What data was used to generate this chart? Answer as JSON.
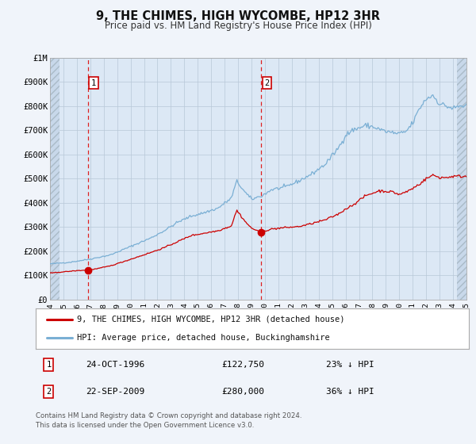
{
  "title": "9, THE CHIMES, HIGH WYCOMBE, HP12 3HR",
  "subtitle": "Price paid vs. HM Land Registry's House Price Index (HPI)",
  "bg_color": "#f0f4fa",
  "plot_bg_color": "#dce8f5",
  "hatch_color": "#c8d8ea",
  "grid_color": "#b8c8d8",
  "red_line_color": "#cc0000",
  "blue_line_color": "#7aafd4",
  "vline_color": "#dd2222",
  "marker_color": "#cc0000",
  "ylim_min": 0,
  "ylim_max": 1000000,
  "yticks": [
    0,
    100000,
    200000,
    300000,
    400000,
    500000,
    600000,
    700000,
    800000,
    900000,
    1000000
  ],
  "ytick_labels": [
    "£0",
    "£100K",
    "£200K",
    "£300K",
    "£400K",
    "£500K",
    "£600K",
    "£700K",
    "£800K",
    "£900K",
    "£1M"
  ],
  "xmin_year": 1994,
  "xmax_year": 2025,
  "xticks": [
    1994,
    1995,
    1996,
    1997,
    1998,
    1999,
    2000,
    2001,
    2002,
    2003,
    2004,
    2005,
    2006,
    2007,
    2008,
    2009,
    2010,
    2011,
    2012,
    2013,
    2014,
    2015,
    2016,
    2017,
    2018,
    2019,
    2020,
    2021,
    2022,
    2023,
    2024,
    2025
  ],
  "sale1_year": 1996.81,
  "sale1_price": 122750,
  "sale1_label": "1",
  "sale1_date": "24-OCT-1996",
  "sale1_price_str": "£122,750",
  "sale1_pct": "23% ↓ HPI",
  "sale2_year": 2009.72,
  "sale2_price": 280000,
  "sale2_label": "2",
  "sale2_date": "22-SEP-2009",
  "sale2_price_str": "£280,000",
  "sale2_pct": "36% ↓ HPI",
  "legend_line1": "9, THE CHIMES, HIGH WYCOMBE, HP12 3HR (detached house)",
  "legend_line2": "HPI: Average price, detached house, Buckinghamshire",
  "footer1": "Contains HM Land Registry data © Crown copyright and database right 2024.",
  "footer2": "This data is licensed under the Open Government Licence v3.0."
}
